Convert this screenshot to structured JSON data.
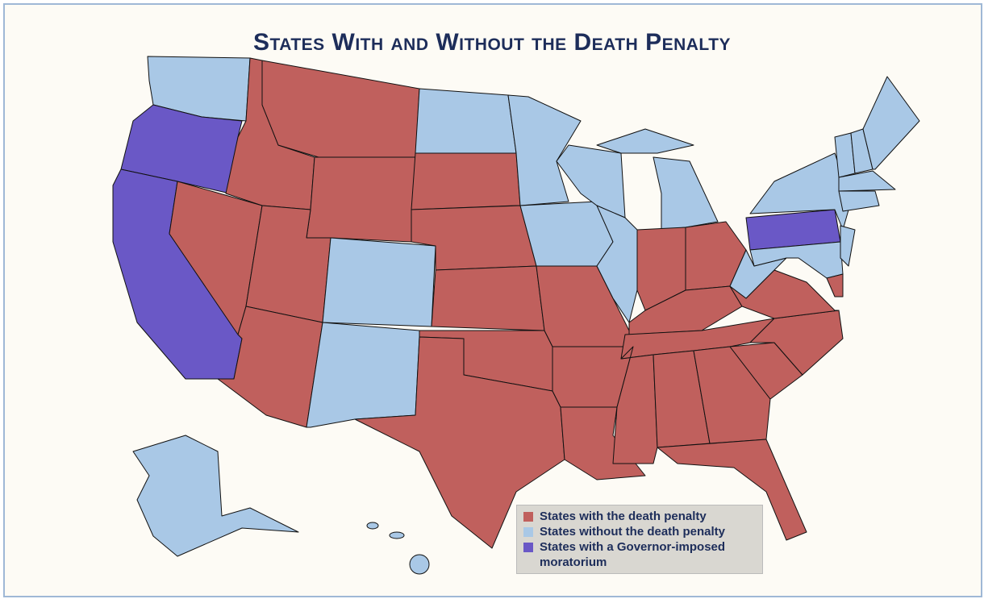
{
  "title": "States With and Without the Death Penalty",
  "legend": [
    {
      "label": "States with the death penalty",
      "color": "#c0605d"
    },
    {
      "label": "States without the death penalty",
      "color": "#a9c8e6"
    },
    {
      "label": "States with a Governor-imposed moratorium",
      "color": "#6a58c6"
    }
  ]
}
